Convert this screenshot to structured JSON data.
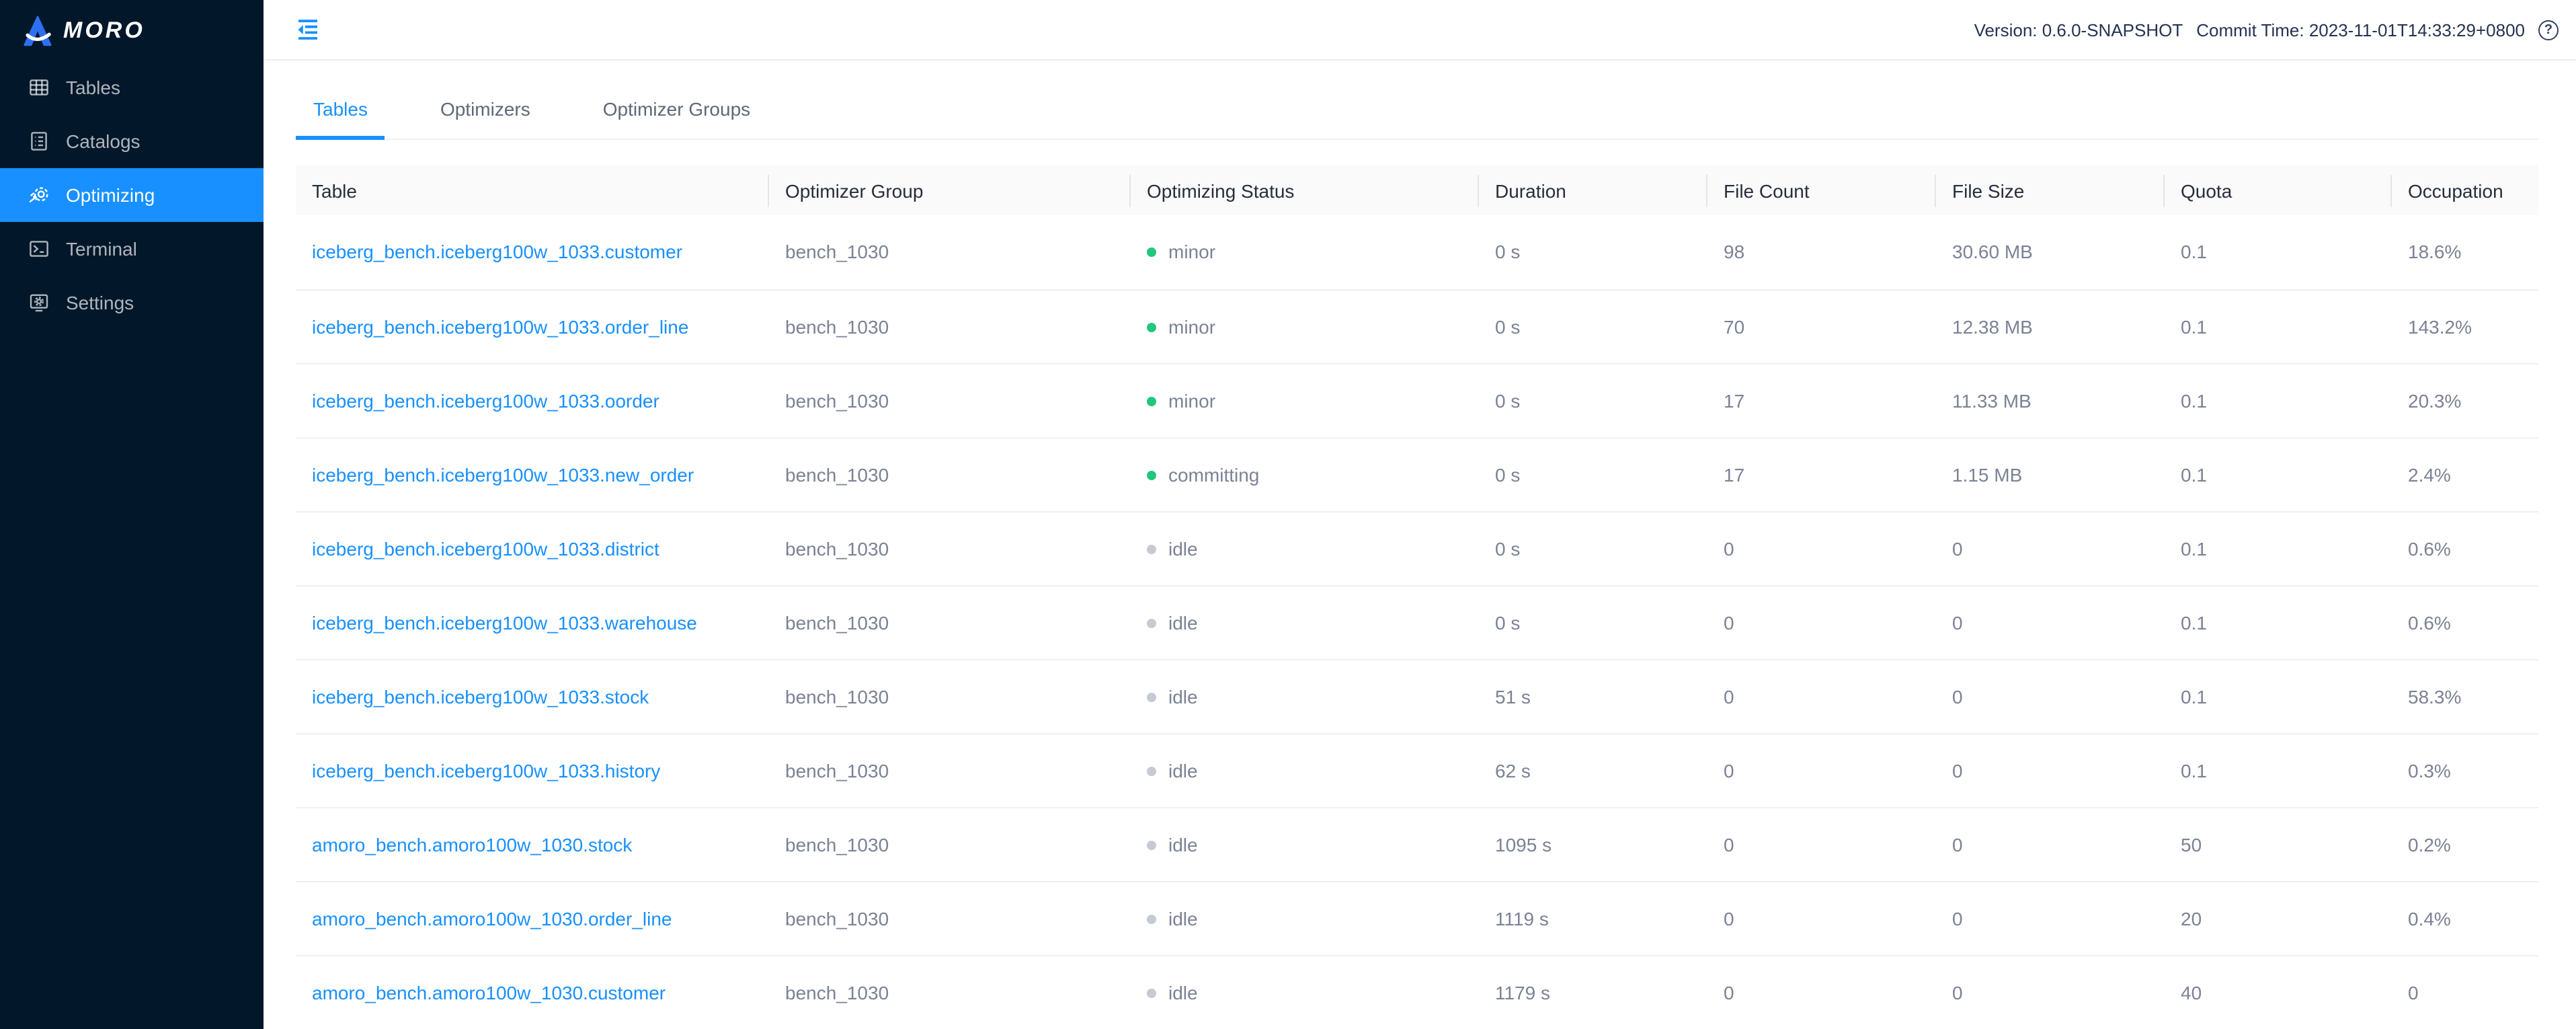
{
  "colors": {
    "accent": "#1890ff",
    "link": "#1890ff",
    "sidebar_bg": "#03172a",
    "status_active_dot": "#21c77d",
    "status_idle_dot": "#c6cad3"
  },
  "sidebar": {
    "logo_text": "MORO",
    "items": [
      {
        "label": "Tables",
        "icon": "tables-icon",
        "active": false
      },
      {
        "label": "Catalogs",
        "icon": "catalogs-icon",
        "active": false
      },
      {
        "label": "Optimizing",
        "icon": "optimizing-icon",
        "active": true
      },
      {
        "label": "Terminal",
        "icon": "terminal-icon",
        "active": false
      },
      {
        "label": "Settings",
        "icon": "settings-icon",
        "active": false
      }
    ]
  },
  "topbar": {
    "version_label": "Version: 0.6.0-SNAPSHOT",
    "commit_label": "Commit Time: 2023-11-01T14:33:29+0800",
    "help_glyph": "?"
  },
  "tabs": [
    {
      "label": "Tables",
      "active": true
    },
    {
      "label": "Optimizers",
      "active": false
    },
    {
      "label": "Optimizer Groups",
      "active": false
    }
  ],
  "table": {
    "columns": [
      {
        "key": "table",
        "label": "Table"
      },
      {
        "key": "group",
        "label": "Optimizer Group"
      },
      {
        "key": "status",
        "label": "Optimizing Status"
      },
      {
        "key": "duration",
        "label": "Duration"
      },
      {
        "key": "file_count",
        "label": "File Count"
      },
      {
        "key": "file_size",
        "label": "File Size"
      },
      {
        "key": "quota",
        "label": "Quota"
      },
      {
        "key": "occupation",
        "label": "Occupation"
      }
    ],
    "rows": [
      {
        "table": "iceberg_bench.iceberg100w_1033.customer",
        "group": "bench_1030",
        "status": "minor",
        "status_type": "active",
        "duration": "0 s",
        "file_count": "98",
        "file_size": "30.60 MB",
        "quota": "0.1",
        "occupation": "18.6%"
      },
      {
        "table": "iceberg_bench.iceberg100w_1033.order_line",
        "group": "bench_1030",
        "status": "minor",
        "status_type": "active",
        "duration": "0 s",
        "file_count": "70",
        "file_size": "12.38 MB",
        "quota": "0.1",
        "occupation": "143.2%"
      },
      {
        "table": "iceberg_bench.iceberg100w_1033.oorder",
        "group": "bench_1030",
        "status": "minor",
        "status_type": "active",
        "duration": "0 s",
        "file_count": "17",
        "file_size": "11.33 MB",
        "quota": "0.1",
        "occupation": "20.3%"
      },
      {
        "table": "iceberg_bench.iceberg100w_1033.new_order",
        "group": "bench_1030",
        "status": "committing",
        "status_type": "active",
        "duration": "0 s",
        "file_count": "17",
        "file_size": "1.15 MB",
        "quota": "0.1",
        "occupation": "2.4%"
      },
      {
        "table": "iceberg_bench.iceberg100w_1033.district",
        "group": "bench_1030",
        "status": "idle",
        "status_type": "idle",
        "duration": "0 s",
        "file_count": "0",
        "file_size": "0",
        "quota": "0.1",
        "occupation": "0.6%"
      },
      {
        "table": "iceberg_bench.iceberg100w_1033.warehouse",
        "group": "bench_1030",
        "status": "idle",
        "status_type": "idle",
        "duration": "0 s",
        "file_count": "0",
        "file_size": "0",
        "quota": "0.1",
        "occupation": "0.6%"
      },
      {
        "table": "iceberg_bench.iceberg100w_1033.stock",
        "group": "bench_1030",
        "status": "idle",
        "status_type": "idle",
        "duration": "51 s",
        "file_count": "0",
        "file_size": "0",
        "quota": "0.1",
        "occupation": "58.3%"
      },
      {
        "table": "iceberg_bench.iceberg100w_1033.history",
        "group": "bench_1030",
        "status": "idle",
        "status_type": "idle",
        "duration": "62 s",
        "file_count": "0",
        "file_size": "0",
        "quota": "0.1",
        "occupation": "0.3%"
      },
      {
        "table": "amoro_bench.amoro100w_1030.stock",
        "group": "bench_1030",
        "status": "idle",
        "status_type": "idle",
        "duration": "1095 s",
        "file_count": "0",
        "file_size": "0",
        "quota": "50",
        "occupation": "0.2%"
      },
      {
        "table": "amoro_bench.amoro100w_1030.order_line",
        "group": "bench_1030",
        "status": "idle",
        "status_type": "idle",
        "duration": "1119 s",
        "file_count": "0",
        "file_size": "0",
        "quota": "20",
        "occupation": "0.4%"
      },
      {
        "table": "amoro_bench.amoro100w_1030.customer",
        "group": "bench_1030",
        "status": "idle",
        "status_type": "idle",
        "duration": "1179 s",
        "file_count": "0",
        "file_size": "0",
        "quota": "40",
        "occupation": "0"
      }
    ]
  }
}
